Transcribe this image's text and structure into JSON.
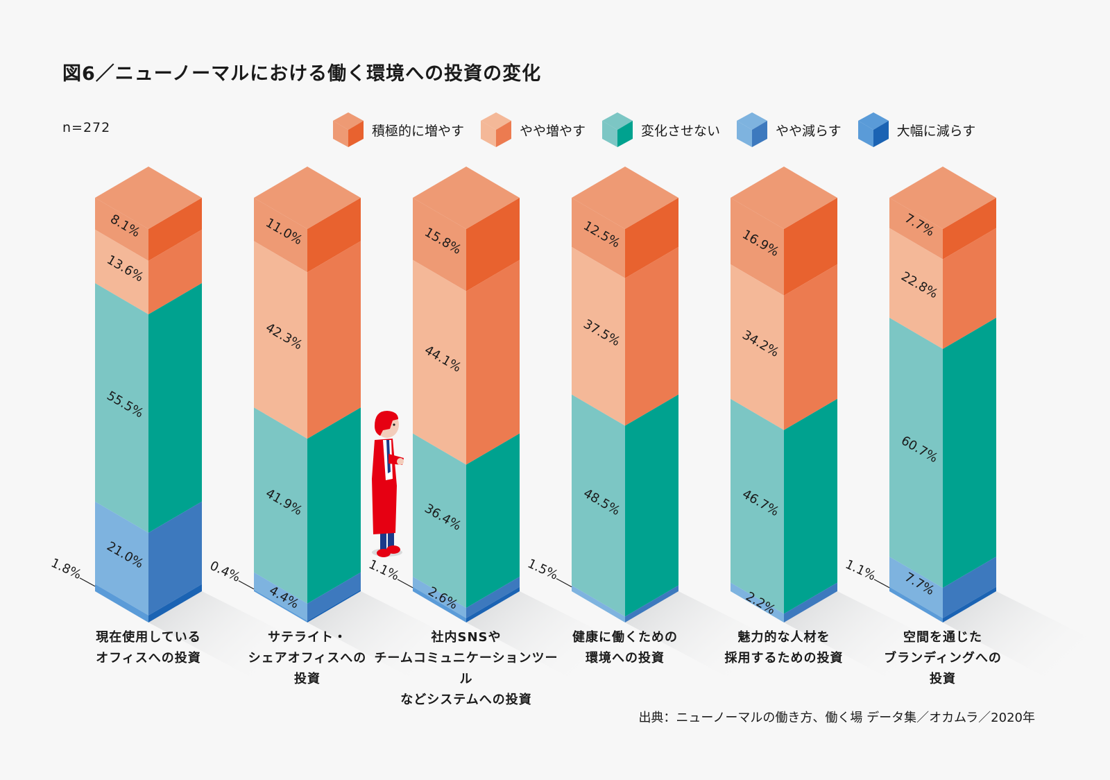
{
  "title": "図6／ニューノーマルにおける働く環境への投資の変化",
  "sample_size": "n=272",
  "source": "出典：ニューノーマルの働き方、働く場 データ集／オカムラ／2020年",
  "legend": [
    {
      "label": "積極的に増やす",
      "top": "#EE9A74",
      "left": "#EE9A74",
      "right": "#E8622F"
    },
    {
      "label": "やや増やす",
      "top": "#F4B898",
      "left": "#F4B898",
      "right": "#EC7B50"
    },
    {
      "label": "変化させない",
      "top": "#7CC6C4",
      "left": "#7CC6C4",
      "right": "#00A28F"
    },
    {
      "label": "やや減らす",
      "top": "#7EB3DF",
      "left": "#7EB3DF",
      "right": "#3D79BE"
    },
    {
      "label": "大幅に減らす",
      "top": "#5A9BD8",
      "left": "#5A9BD8",
      "right": "#1B63B3"
    }
  ],
  "chart_data": {
    "type": "bar",
    "stacked": true,
    "orientation": "vertical-isometric",
    "title": "図6／ニューノーマルにおける働く環境への投資の変化",
    "unit": "%",
    "categories": [
      "現在使用しているオフィスへの投資",
      "サテライト・シェアオフィスへの投資",
      "社内SNSやチームコミュニケーションツールなどシステムへの投資",
      "健康に働くための環境への投資",
      "魅力的な人材を採用するための投資",
      "空間を通じたブランディングへの投資"
    ],
    "category_lines": [
      [
        "現在使用している",
        "オフィスへの投資"
      ],
      [
        "サテライト・",
        "シェアオフィスへの",
        "投資"
      ],
      [
        "社内SNSや",
        "チームコミュニケーションツール",
        "などシステムへの投資"
      ],
      [
        "健康に働くための",
        "環境への投資"
      ],
      [
        "魅力的な人材を",
        "採用するための投資"
      ],
      [
        "空間を通じた",
        "ブランディングへの",
        "投資"
      ]
    ],
    "series": [
      {
        "name": "積極的に増やす",
        "values": [
          8.1,
          11.0,
          15.8,
          12.5,
          16.9,
          7.7
        ]
      },
      {
        "name": "やや増やす",
        "values": [
          13.6,
          42.3,
          44.1,
          37.5,
          34.2,
          22.8
        ]
      },
      {
        "name": "変化させない",
        "values": [
          55.5,
          41.9,
          36.4,
          48.5,
          46.7,
          60.7
        ]
      },
      {
        "name": "やや減らす",
        "values": [
          21.0,
          4.4,
          2.6,
          1.5,
          2.2,
          7.7
        ]
      },
      {
        "name": "大幅に減らす",
        "values": [
          1.8,
          0.4,
          1.1,
          0,
          0,
          1.1
        ]
      }
    ],
    "outside_labels": [
      {
        "category": 0,
        "series": 4,
        "text": "1.8%"
      },
      {
        "category": 1,
        "series": 4,
        "text": "0.4%"
      },
      {
        "category": 2,
        "series": 4,
        "text": "1.1%"
      },
      {
        "category": 3,
        "series": 3,
        "text": "1.5%"
      },
      {
        "category": 5,
        "series": 4,
        "text": "1.1%"
      }
    ],
    "inside_labels": [
      [
        "8.1%",
        "13.6%",
        "55.5%",
        "21.0%",
        null
      ],
      [
        "11.0%",
        "42.3%",
        "41.9%",
        "4.4%",
        null
      ],
      [
        "15.8%",
        "44.1%",
        "36.4%",
        "2.6%",
        null
      ],
      [
        "12.5%",
        "37.5%",
        "48.5%",
        null,
        null
      ],
      [
        "16.9%",
        "34.2%",
        "46.7%",
        "2.2%",
        null
      ],
      [
        "7.7%",
        "22.8%",
        "60.7%",
        "7.7%",
        null
      ]
    ],
    "ylim": [
      0,
      100
    ],
    "legend_position": "top-right"
  }
}
